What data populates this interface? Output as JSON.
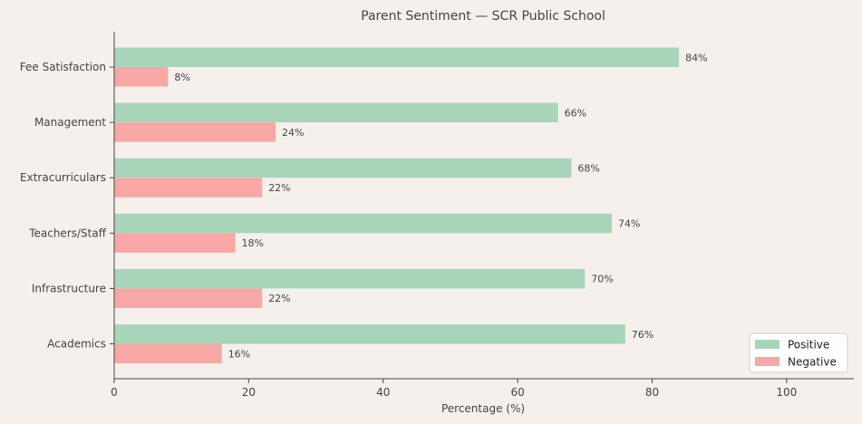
{
  "chart_data": {
    "type": "bar",
    "orientation": "horizontal",
    "title": "Parent Sentiment — SCR Public School",
    "xlabel": "Percentage (%)",
    "ylabel": "",
    "xlim": [
      0,
      110
    ],
    "xticks": [
      0,
      20,
      40,
      60,
      80,
      100
    ],
    "grid": false,
    "legend_position": "lower-right",
    "categories": [
      "Fee Satisfaction",
      "Management",
      "Extracurriculars",
      "Teachers/Staff",
      "Infrastructure",
      "Academics"
    ],
    "series": [
      {
        "name": "Positive",
        "color": "#a8d5ba",
        "values": [
          84,
          66,
          68,
          74,
          70,
          76
        ]
      },
      {
        "name": "Negative",
        "color": "#f7a8a4",
        "values": [
          8,
          24,
          22,
          18,
          22,
          16
        ]
      }
    ],
    "value_label_suffix": "%"
  }
}
